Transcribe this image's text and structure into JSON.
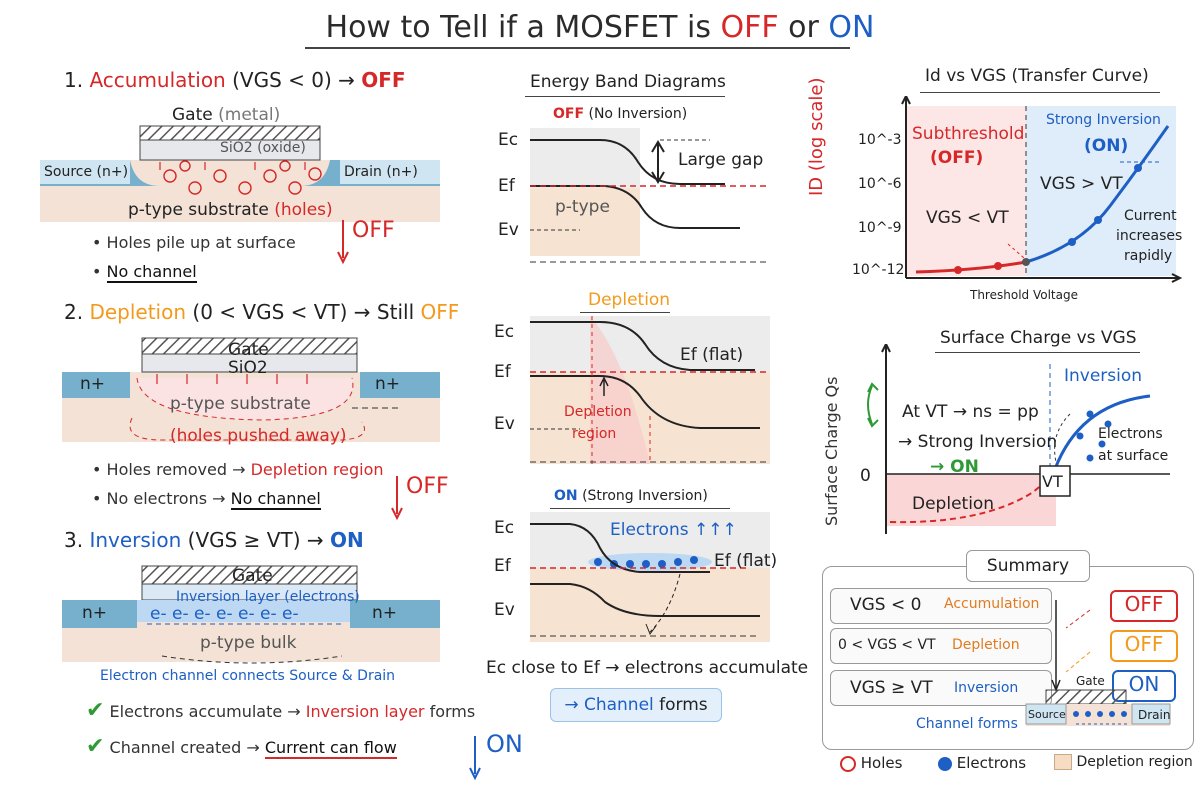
{
  "title": {
    "prefix": "How to Tell if a MOSFET is ",
    "off": "OFF",
    "mid": " or ",
    "on": "ON"
  },
  "accumulation": {
    "num": "1.",
    "name": "Accumulation",
    "cond": "(VGS < 0) →",
    "state": "OFF",
    "gate": "Gate",
    "gate_sub": "(metal)",
    "oxide": "SiO2 (oxide)",
    "source": "Source (n+)",
    "drain": "Drain (n+)",
    "substrate": "p-type substrate",
    "substrate_note": "(holes)",
    "bullets": [
      "Holes pile up at surface",
      "No channel"
    ],
    "arrow_label": "OFF"
  },
  "depletion": {
    "num": "2.",
    "name": "Depletion",
    "cond": "(0 < VGS < VT) →",
    "still": "Still",
    "state": "OFF",
    "gate": "Gate",
    "oxide": "SiO2",
    "n_left": "n+",
    "n_right": "n+",
    "substrate": "p-type substrate",
    "holes_note": "(holes pushed away)",
    "bullet1_a": "Holes removed →",
    "bullet1_b": "Depletion region",
    "bullet2_a": "No electrons →",
    "bullet2_b": "No channel",
    "arrow_label": "OFF"
  },
  "inversion": {
    "num": "3.",
    "name": "Inversion",
    "cond": "(VGS ≥ VT) →",
    "state": "ON",
    "gate": "Gate",
    "layer": "Inversion layer (electrons)",
    "electrons": "e- e- e- e- e- e- e-",
    "n_left": "n+",
    "n_right": "n+",
    "bulk": "p-type bulk",
    "connects": "Electron channel connects Source & Drain",
    "check1_a": "Electrons accumulate →",
    "check1_b": "Inversion layer",
    "check1_c": "forms",
    "check2_a": "Channel created →",
    "check2_b": "Current can flow",
    "arrow_label": "ON"
  },
  "bands": {
    "title": "Energy Band Diagrams",
    "off_label": "OFF",
    "off_sub": "(No Inversion)",
    "large_gap": "Large gap",
    "ptype": "p-type",
    "dep_label": "Depletion",
    "ef_flat": "Ef (flat)",
    "dep_region_1": "Depletion",
    "dep_region_2": "region",
    "on_label": "ON",
    "on_sub": "(Strong Inversion)",
    "electrons": "Electrons ↑↑↑",
    "ef_flat2": "Ef (flat)",
    "ec": "Ec",
    "ef": "Ef",
    "ev": "Ev",
    "note": "Ec close to Ef → electrons accumulate",
    "channel_arrow": "→ Channel",
    "channel_forms": "forms"
  },
  "transfer": {
    "title": "Id vs VGS (Transfer Curve)",
    "ylabel": "ID (log scale)",
    "yticks": [
      "10^-3",
      "10^-6",
      "10^-9",
      "10^-12"
    ],
    "sub_label": "Subthreshold",
    "sub_state": "(OFF)",
    "strong_label": "Strong Inversion",
    "strong_state": "(ON)",
    "vgs_lt": "VGS < VT",
    "vgs_gt": "VGS > VT",
    "current_1": "Current",
    "current_2": "increases",
    "current_3": "rapidly",
    "xlabel": "Threshold Voltage"
  },
  "surface": {
    "title": "Surface Charge vs VGS",
    "ylabel": "Surface Charge Qs",
    "zero": "0",
    "inversion": "Inversion",
    "at_vt": "At VT → ns = pp",
    "strong": "→ Strong Inversion",
    "on": "→ ON",
    "electrons_1": "Electrons",
    "electrons_2": "at surface",
    "depletion": "Depletion",
    "vt_box": "VT"
  },
  "summary": {
    "title": "Summary",
    "rows": [
      {
        "cond": "VGS < 0",
        "region": "Accumulation",
        "state": "OFF"
      },
      {
        "cond": "0 < VGS < VT",
        "region": "Depletion",
        "state": "OFF"
      },
      {
        "cond": "VGS ≥ VT",
        "region": "Inversion",
        "state": "ON"
      }
    ],
    "gate": "Gate",
    "source": "Source",
    "drain": "Drain",
    "channel_forms": "Channel forms"
  },
  "legend": {
    "holes": "Holes",
    "electrons": "Electrons",
    "depletion": "Depletion region"
  },
  "colors": {
    "red": "#d62828",
    "blue": "#1d5fc4",
    "orange": "#f39a1c",
    "green": "#2e9a35"
  }
}
